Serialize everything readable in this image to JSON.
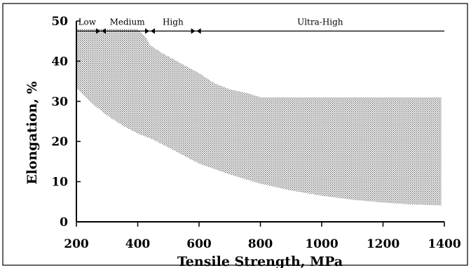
{
  "chart_data": {
    "type": "area",
    "xlabel": "Tensile Strength, MPa",
    "ylabel": "Elongation, %",
    "xlim": [
      200,
      1400
    ],
    "ylim": [
      0,
      50
    ],
    "xticks": [
      "200",
      "400",
      "600",
      "800",
      "1000",
      "1200",
      "1400"
    ],
    "yticks": [
      "0",
      "10",
      "20",
      "30",
      "40",
      "50"
    ],
    "grid": false,
    "legend": "none",
    "band": {
      "upper": {
        "x": [
          200,
          400,
          430,
          440,
          480,
          540,
          600,
          650,
          700,
          760,
          800,
          850,
          1000,
          1200,
          1390
        ],
        "y": [
          48,
          48,
          45.5,
          44,
          42,
          39.5,
          37,
          34.5,
          33,
          32,
          31,
          31,
          31,
          31,
          31
        ]
      },
      "lower": {
        "x": [
          200,
          250,
          300,
          350,
          400,
          450,
          500,
          550,
          600,
          700,
          800,
          900,
          1000,
          1100,
          1200,
          1300,
          1390
        ],
        "y": [
          33.5,
          29.5,
          26.5,
          24,
          22,
          20.5,
          18.5,
          16.5,
          14.5,
          11.8,
          9.5,
          7.8,
          6.5,
          5.5,
          4.8,
          4.3,
          4.1
        ]
      },
      "fill": "#888888"
    },
    "strength_classes": {
      "line_y": 47.5,
      "boundaries": [
        280,
        440,
        590
      ],
      "end": 1400,
      "classes": [
        {
          "label": "Low",
          "x": 235
        },
        {
          "label": "Medium",
          "x": 366
        },
        {
          "label": "High",
          "x": 515
        },
        {
          "label": "Ultra-High",
          "x": 995
        }
      ]
    }
  },
  "colors": {
    "axis": "#000000",
    "frame": "#000000",
    "background": "#ffffff"
  }
}
